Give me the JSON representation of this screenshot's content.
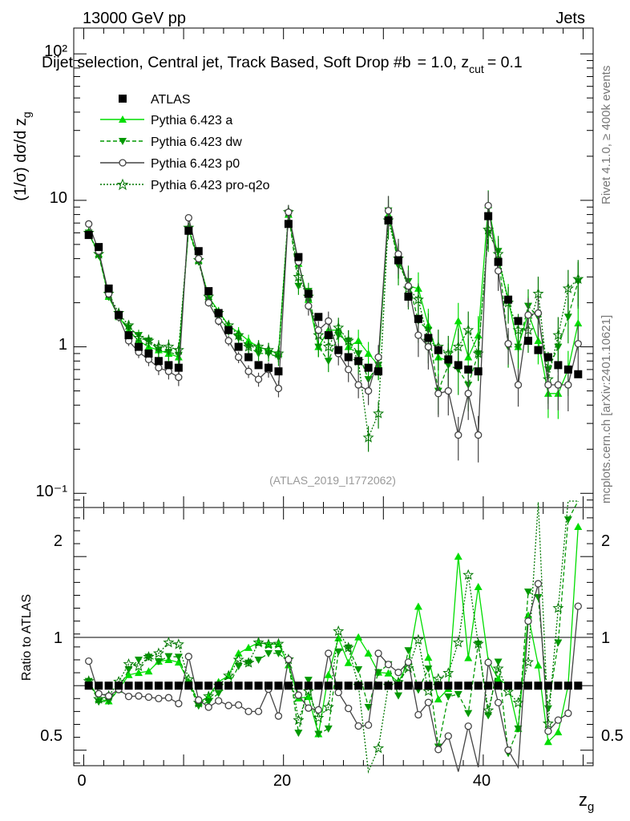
{
  "header": {
    "energy": "13000 GeV pp",
    "process": "Jets",
    "selection": "Dijet selection, Central jet, Track Based, Soft Drop #b",
    "selection_params": "= 1.0, z",
    "selection_sub": "cut",
    "selection_tail": "= 0.1"
  },
  "side": {
    "rivet": "Rivet 4.1.0, ≥ 400k events",
    "mcplots": "mcplots.cern.ch [arXiv:2401.10621]"
  },
  "watermark": "(ATLAS_2019_I1772062)",
  "colors": {
    "atlas": "#000000",
    "a": "#00dd00",
    "dw": "#009900",
    "p0": "#444444",
    "pro_q2o": "#007700"
  },
  "chart_data": {
    "type": "scatter",
    "title": "Dijet selection, Central jet, Track Based, Soft Drop #b = 1.0, z_cut = 0.1",
    "xlabel": "z_g",
    "ylabel": "(1/σ) dσ/d z_g",
    "ratio_ylabel": "Ratio to ATLAS",
    "xlim": [
      -1,
      51
    ],
    "ylim": [
      0.08,
      150
    ],
    "yscale": "log",
    "ratio_ylim": [
      0.38,
      2.38
    ],
    "x_ticks": [
      "0",
      "20",
      "40"
    ],
    "y_ticks": [
      "10⁻¹",
      "1",
      "10",
      "10²"
    ],
    "ratio_ticks": [
      "0.5",
      "1",
      "2"
    ],
    "x": [
      0.5,
      1.5,
      2.5,
      3.5,
      4.5,
      5.5,
      6.5,
      7.5,
      8.5,
      9.5,
      10.5,
      11.5,
      12.5,
      13.5,
      14.5,
      15.5,
      16.5,
      17.5,
      18.5,
      19.5,
      20.5,
      21.5,
      22.5,
      23.5,
      24.5,
      25.5,
      26.5,
      27.5,
      28.5,
      29.5,
      30.5,
      31.5,
      32.5,
      33.5,
      34.5,
      35.5,
      36.5,
      37.5,
      38.5,
      39.5,
      40.5,
      41.5,
      42.5,
      43.5,
      44.5,
      45.5,
      46.5,
      47.5,
      48.5,
      49.5
    ],
    "series": [
      {
        "name": "ATLAS",
        "values": [
          5.8,
          4.8,
          2.5,
          1.65,
          1.2,
          1.0,
          0.9,
          0.8,
          0.75,
          0.72,
          6.2,
          4.5,
          2.4,
          1.7,
          1.3,
          1.0,
          0.85,
          0.75,
          0.72,
          0.68,
          6.9,
          4.1,
          2.3,
          1.6,
          1.2,
          0.95,
          0.85,
          0.8,
          0.72,
          0.68,
          7.3,
          3.9,
          2.2,
          1.55,
          1.15,
          0.95,
          0.82,
          0.75,
          0.7,
          0.68,
          7.8,
          3.8,
          2.1,
          1.5,
          1.1,
          0.95,
          0.85,
          0.75,
          0.7,
          0.65
        ]
      },
      {
        "name": "Pythia 6.423 a",
        "values": [
          6.0,
          4.3,
          2.2,
          1.6,
          1.3,
          1.1,
          1.0,
          0.95,
          0.9,
          0.85,
          6.4,
          3.9,
          2.2,
          1.75,
          1.4,
          1.25,
          1.1,
          1.0,
          0.95,
          0.9,
          8.0,
          3.7,
          2.1,
          1.0,
          1.3,
          1.3,
          1.0,
          1.1,
          0.9,
          0.75,
          8.0,
          4.0,
          2.6,
          2.5,
          1.4,
          0.85,
          0.8,
          1.5,
          0.85,
          1.2,
          9.3,
          4.0,
          2.1,
          1.0,
          1.7,
          1.1,
          0.48,
          0.48,
          0.7,
          1.45
        ]
      },
      {
        "name": "Pythia 6.423 dw",
        "values": [
          6.0,
          4.2,
          2.2,
          1.6,
          1.35,
          1.2,
          1.1,
          0.95,
          0.92,
          0.88,
          6.3,
          3.8,
          2.1,
          1.6,
          1.3,
          1.15,
          1.0,
          0.9,
          0.9,
          0.85,
          8.2,
          2.6,
          2.4,
          1.0,
          0.8,
          1.2,
          1.1,
          0.9,
          0.6,
          0.75,
          8.5,
          3.6,
          2.8,
          1.5,
          1.3,
          0.5,
          0.75,
          0.7,
          0.55,
          0.9,
          6.0,
          4.5,
          1.0,
          1.0,
          1.9,
          1.6,
          0.7,
          1.0,
          1.6,
          2.8
        ]
      },
      {
        "name": "Pythia 6.423 p0",
        "values": [
          6.9,
          4.5,
          2.3,
          1.6,
          1.1,
          0.92,
          0.82,
          0.72,
          0.68,
          0.62,
          7.6,
          4.0,
          2.0,
          1.5,
          1.1,
          0.85,
          0.68,
          0.6,
          0.7,
          0.52,
          8.3,
          3.8,
          1.9,
          1.3,
          1.5,
          0.9,
          0.7,
          0.55,
          0.5,
          0.85,
          8.5,
          4.3,
          2.6,
          1.2,
          1.0,
          0.48,
          0.5,
          0.25,
          0.48,
          0.25,
          9.2,
          3.3,
          1.05,
          0.55,
          1.65,
          1.7,
          0.55,
          0.55,
          0.55,
          1.05
        ]
      },
      {
        "name": "Pythia 6.423 pro-q2o",
        "values": [
          6.0,
          4.3,
          2.3,
          1.7,
          1.4,
          1.15,
          1.1,
          1.0,
          1.0,
          0.95,
          6.5,
          3.9,
          2.2,
          1.7,
          1.4,
          1.2,
          1.0,
          1.0,
          0.95,
          0.9,
          8.3,
          3.0,
          2.2,
          1.2,
          1.0,
          1.35,
          1.1,
          0.8,
          0.24,
          0.35,
          7.3,
          4.0,
          2.5,
          2.1,
          1.1,
          1.0,
          0.9,
          1.0,
          1.3,
          0.9,
          6.3,
          4.3,
          2.0,
          1.3,
          1.3,
          2.3,
          0.6,
          1.2,
          2.5,
          2.9
        ]
      }
    ]
  }
}
